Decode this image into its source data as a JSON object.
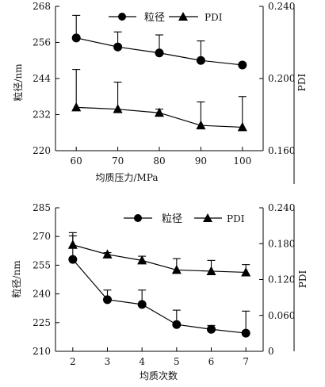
{
  "chart_data": [
    {
      "type": "line",
      "x": [
        60,
        70,
        80,
        90,
        100
      ],
      "xlabel": "均质压力/MPa",
      "xlim": [
        55,
        105
      ],
      "ylabel": "粒径/nm",
      "ylim": [
        220,
        268
      ],
      "yticks": [
        220,
        232,
        244,
        256,
        268
      ],
      "y2label": "PDI",
      "y2lim": [
        0.16,
        0.24
      ],
      "y2ticks": [
        "0.160",
        "0.200",
        "0.240"
      ],
      "legend": "top",
      "grid": false,
      "series": [
        {
          "name": "粒径",
          "axis": "left",
          "marker": "circle",
          "values": [
            257.5,
            254.5,
            252.5,
            250,
            248.5
          ],
          "errors": [
            7.5,
            5,
            6,
            6.5,
            0
          ]
        },
        {
          "name": "PDI",
          "axis": "right",
          "marker": "triangle",
          "values": [
            0.184,
            0.183,
            0.181,
            0.174,
            0.173
          ],
          "errors": [
            0.021,
            0.015,
            0.002,
            0.013,
            0.017
          ]
        }
      ]
    },
    {
      "type": "line",
      "x": [
        2,
        3,
        4,
        5,
        6,
        7
      ],
      "xlabel": "均质次数",
      "xlim": [
        1.5,
        7.5
      ],
      "ylabel": "粒径/nm",
      "ylim": [
        210,
        285
      ],
      "yticks": [
        210,
        225,
        240,
        255,
        270,
        285
      ],
      "y2label": "PDI",
      "y2lim": [
        0,
        0.24
      ],
      "y2ticks": [
        "0",
        "0.060",
        "0.120",
        "0.180",
        "0.240"
      ],
      "legend": "top",
      "grid": false,
      "series": [
        {
          "name": "粒径",
          "axis": "left",
          "marker": "circle",
          "values": [
            258,
            237,
            234.5,
            224,
            221.5,
            219.5
          ],
          "errors": [
            14,
            5,
            7.5,
            7.5,
            2,
            11.5
          ]
        },
        {
          "name": "PDI",
          "axis": "right",
          "marker": "triangle",
          "values": [
            0.178,
            0.162,
            0.152,
            0.136,
            0.134,
            0.132
          ],
          "errors": [
            0.015,
            0.003,
            0.007,
            0.019,
            0.018,
            0.013
          ]
        }
      ]
    }
  ]
}
